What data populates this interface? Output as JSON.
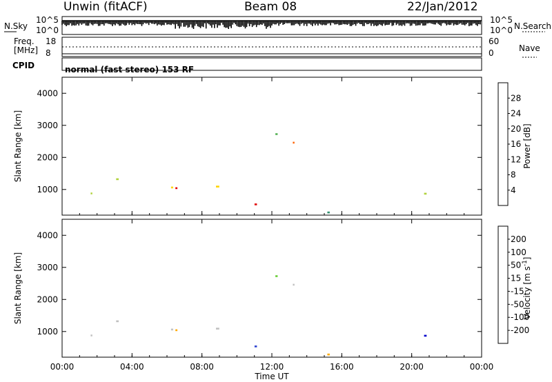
{
  "header": {
    "station": "Unwin (fitACF)",
    "beam": "Beam 08",
    "date": "22/Jan/2012"
  },
  "status_panels": {
    "nsky_label": "N.Sky",
    "nsky_ticks": [
      "10^5",
      "10^0"
    ],
    "nsearch_label": "N.Search",
    "nsearch_ticks": [
      "10^5",
      "10^0"
    ],
    "freq_label_line1": "Freq.",
    "freq_label_line2": "[MHz]",
    "freq_ticks": [
      "18",
      "8"
    ],
    "nave_label": "Nave",
    "nave_ticks": [
      "60",
      "0"
    ],
    "cpid_label": "CPID",
    "cpid_text": "normal (fast stereo) 153 RF"
  },
  "chart_data": [
    {
      "type": "heatmap",
      "name": "power",
      "ylabel": "Slant Range [km]",
      "yticks": [
        "4000",
        "3000",
        "2000",
        "1000"
      ],
      "ylim": [
        200,
        4500
      ],
      "colorbar_label": "Power [dB]",
      "colorbar_ticks": [
        "28",
        "24",
        "20",
        "16",
        "12",
        "8",
        "4"
      ],
      "colorbar_colors": [
        "#0000ff",
        "#1f5fbf",
        "#2f8f6f",
        "#53b153",
        "#b0d23c",
        "#ffd400",
        "#ffa000",
        "#ff6000",
        "#ff2a00",
        "#e00000"
      ],
      "grid": false
    },
    {
      "type": "heatmap",
      "name": "velocity",
      "ylabel": "Slant Range [km]",
      "yticks": [
        "4000",
        "3000",
        "2000",
        "1000"
      ],
      "ylim": [
        200,
        4500
      ],
      "colorbar_label": "Velocity [m s",
      "colorbar_label_sup": "-1",
      "colorbar_label_end": "]",
      "colorbar_ticks": [
        "200",
        "100",
        "50",
        "15",
        "-15",
        "-50",
        "-100",
        "-200"
      ],
      "colorbar_colors": [
        "#0000cc",
        "#2a40d0",
        "#3a7a3a",
        "#66cc33",
        "#c0c0c0",
        "#ffaa00",
        "#ff7700",
        "#ff4400",
        "#ff0000"
      ],
      "grid": false
    }
  ],
  "x_axis": {
    "xlabel": "Time UT",
    "xticks": [
      "00:00",
      "04:00",
      "08:00",
      "12:00",
      "16:00",
      "20:00",
      "00:00"
    ]
  }
}
